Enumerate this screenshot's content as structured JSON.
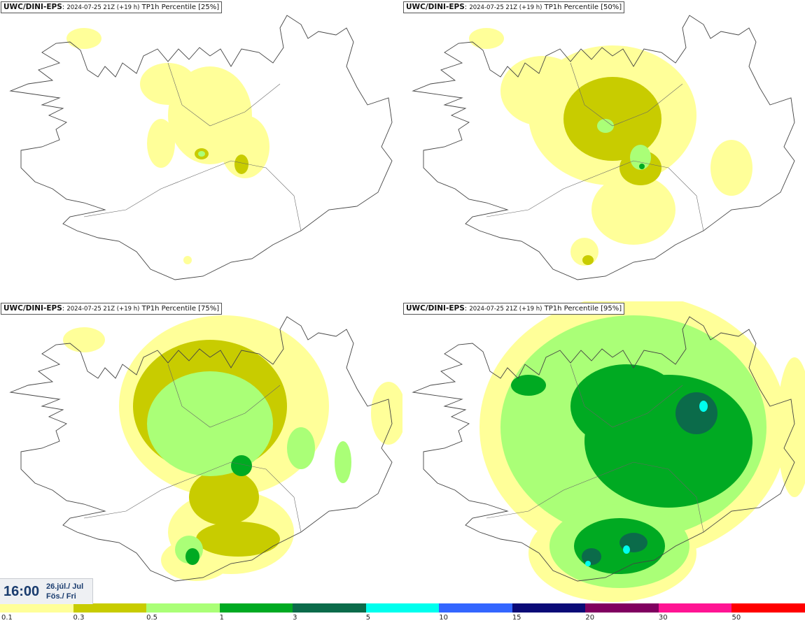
{
  "panels": [
    {
      "model": "UWC/DINI-EPS",
      "init": "2024-07-25 21Z (+19 h)",
      "field": "TP1h Percentile [25%]"
    },
    {
      "model": "UWC/DINI-EPS",
      "init": "2024-07-25 21Z (+19 h)",
      "field": "TP1h Percentile [50%]"
    },
    {
      "model": "UWC/DINI-EPS",
      "init": "2024-07-25 21Z (+19 h)",
      "field": "TP1h Percentile [75%]"
    },
    {
      "model": "UWC/DINI-EPS",
      "init": "2024-07-25 21Z (+19 h)",
      "field": "TP1h Percentile [95%]"
    }
  ],
  "valid_time": {
    "time": "16:00",
    "date_line1": "26.júl./ Jul",
    "date_line2": "Fös./ Fri"
  },
  "legend": {
    "colors": [
      "#ffff99",
      "#c8cc00",
      "#aaff77",
      "#00aa22",
      "#0b6b4a",
      "#00ffee",
      "#3366ff",
      "#0a0a77",
      "#800060",
      "#ff1493",
      "#ff0000"
    ],
    "labels": [
      "0.1",
      "0.3",
      "0.5",
      "1",
      "3",
      "5",
      "10",
      "15",
      "20",
      "30",
      "50"
    ]
  }
}
